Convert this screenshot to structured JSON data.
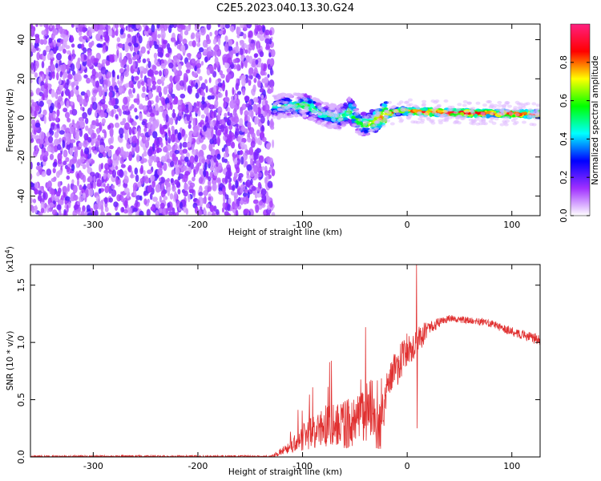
{
  "title": "C2E5.2023.040.13.30.G24",
  "chart_data": [
    {
      "type": "heatmap",
      "xlabel": "Height of straight line (km)",
      "ylabel": "Frequency (Hz)",
      "xlim": [
        -360,
        127
      ],
      "ylim": [
        -50,
        48
      ],
      "xticks": [
        -300,
        -200,
        -100,
        0,
        100
      ],
      "xtick_labels": [
        "-300",
        "-200",
        "-100",
        "0",
        "100"
      ],
      "yticks": [
        -40,
        -20,
        0,
        20,
        40
      ],
      "ytick_labels": [
        "-40",
        "-20",
        "0",
        "20",
        "40"
      ],
      "noise_region_x": [
        -360,
        -128
      ],
      "signal_ridge": [
        {
          "x": -128,
          "f": 5.5,
          "amp": 0.45
        },
        {
          "x": -110,
          "f": 6.5,
          "amp": 0.55
        },
        {
          "x": -95,
          "f": 6,
          "amp": 0.6
        },
        {
          "x": -80,
          "f": 2,
          "amp": 0.5
        },
        {
          "x": -65,
          "f": 0,
          "amp": 0.55
        },
        {
          "x": -55,
          "f": 4,
          "amp": 0.65
        },
        {
          "x": -45,
          "f": -3,
          "amp": 0.55
        },
        {
          "x": -35,
          "f": -3,
          "amp": 0.7
        },
        {
          "x": -20,
          "f": 2,
          "amp": 0.85
        },
        {
          "x": -5,
          "f": 3.5,
          "amp": 0.8
        },
        {
          "x": 20,
          "f": 3,
          "amp": 0.95
        },
        {
          "x": 60,
          "f": 2.5,
          "amp": 0.95
        },
        {
          "x": 100,
          "f": 2,
          "amp": 0.9
        },
        {
          "x": 127,
          "f": 2,
          "amp": 0.9
        }
      ],
      "colorbar": {
        "label": "Normalized spectral amplitude",
        "ticks": [
          0.0,
          0.2,
          0.4,
          0.6,
          0.8
        ],
        "tick_labels": [
          "0.0",
          "0.2",
          "0.4",
          "0.6",
          "0.8"
        ],
        "stops": [
          "#ffffff",
          "#a030ff",
          "#0000ff",
          "#00ffff",
          "#00ff00",
          "#ffff00",
          "#ff0000",
          "#ff2080"
        ]
      }
    },
    {
      "type": "line",
      "xlabel": "Height of straight line (km)",
      "ylabel": "SNR (10 * v/v)",
      "multiplier": "(x10",
      "multiplier_exp": "4",
      "xlim": [
        -360,
        127
      ],
      "ylim": [
        0,
        1.68
      ],
      "xticks": [
        -300,
        -200,
        -100,
        0,
        100
      ],
      "xtick_labels": [
        "-300",
        "-200",
        "-100",
        "0",
        "100"
      ],
      "yticks": [
        0.0,
        0.5,
        1.0,
        1.5
      ],
      "ytick_labels": [
        "0.0",
        "0.5",
        "1.0",
        "1.5"
      ],
      "color": "#e03030",
      "envelope": [
        {
          "x": -360,
          "base": 0.0,
          "noise": 0.02
        },
        {
          "x": -130,
          "base": 0.0,
          "noise": 0.02
        },
        {
          "x": -115,
          "base": 0.05,
          "noise": 0.1
        },
        {
          "x": -100,
          "base": 0.12,
          "noise": 0.25
        },
        {
          "x": -80,
          "base": 0.2,
          "noise": 0.35
        },
        {
          "x": -60,
          "base": 0.2,
          "noise": 0.45
        },
        {
          "x": -40,
          "base": 0.25,
          "noise": 0.5
        },
        {
          "x": -25,
          "base": 0.2,
          "noise": 0.45
        },
        {
          "x": -18,
          "base": 0.6,
          "noise": 0.3
        },
        {
          "x": 0,
          "base": 0.85,
          "noise": 0.35
        },
        {
          "x": 10,
          "base": 0.95,
          "noise": 0.3
        },
        {
          "x": 20,
          "base": 1.1,
          "noise": 0.12
        },
        {
          "x": 40,
          "base": 1.2,
          "noise": 0.06
        },
        {
          "x": 60,
          "base": 1.18,
          "noise": 0.06
        },
        {
          "x": 80,
          "base": 1.15,
          "noise": 0.07
        },
        {
          "x": 100,
          "base": 1.08,
          "noise": 0.08
        },
        {
          "x": 127,
          "base": 1.0,
          "noise": 0.1
        }
      ],
      "spikes": [
        {
          "x": 9,
          "y": 1.68
        },
        {
          "x": 9.5,
          "y": 0.25
        }
      ]
    }
  ]
}
